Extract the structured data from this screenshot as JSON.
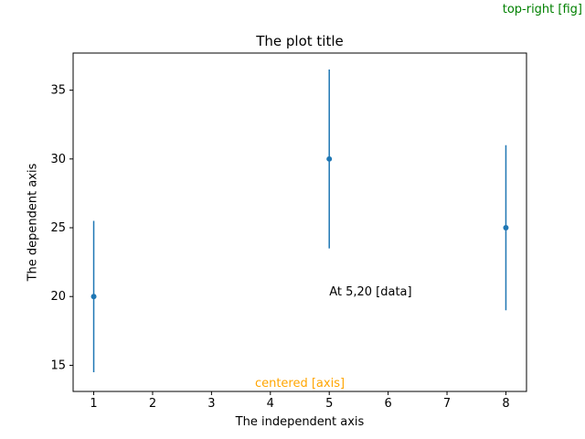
{
  "chart_data": {
    "type": "scatter",
    "title": "The plot title",
    "xlabel": "The independent axis",
    "ylabel": "The dependent axis",
    "x": [
      1,
      5,
      8
    ],
    "y": [
      20,
      30,
      25
    ],
    "yerr": [
      5.5,
      6.5,
      6
    ],
    "xticks": [
      1,
      2,
      3,
      4,
      5,
      6,
      7,
      8
    ],
    "yticks": [
      15,
      20,
      25,
      30,
      35
    ],
    "xlim": [
      0.65,
      8.35
    ],
    "ylim": [
      13.1,
      37.7
    ],
    "grid": false,
    "legend": false,
    "marker_color": "#1f77b4"
  },
  "annotations": {
    "fig_text": {
      "label": "top-right [fig]",
      "color": "#008000"
    },
    "axis_text": {
      "label": "centered [axis]",
      "color": "#ffa500"
    },
    "data_text": {
      "label": "At 5,20 [data]",
      "x": 5,
      "y": 20,
      "color": "#000000"
    }
  }
}
